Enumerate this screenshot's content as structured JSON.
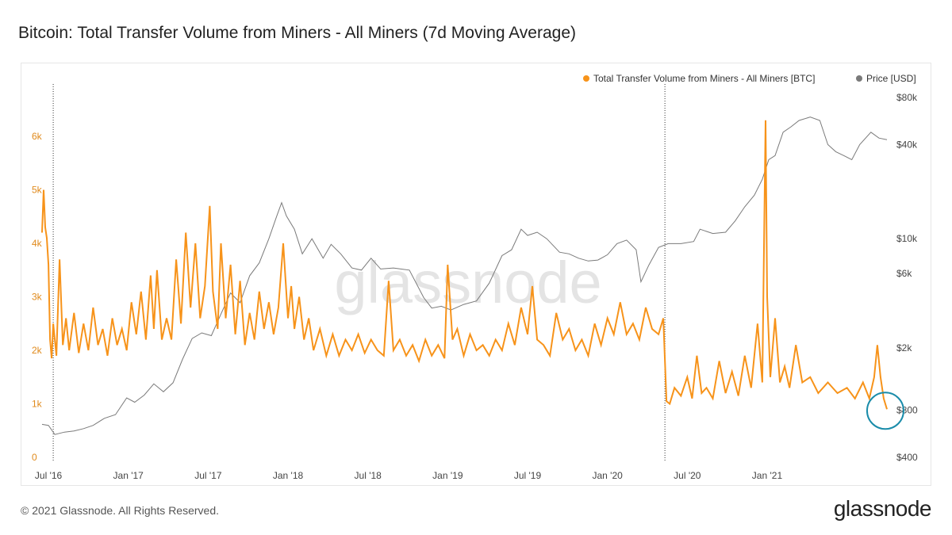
{
  "page": {
    "title": "Bitcoin: Total Transfer Volume from Miners - All Miners (7d Moving Average)",
    "footer": "© 2021 Glassnode. All Rights Reserved.",
    "brand": "glassnode",
    "watermark": "glassnode"
  },
  "colors": {
    "volume": "#f7931a",
    "price": "#7a7a7a",
    "highlight": "#1a8caa",
    "axis_left": "#e08a1c",
    "axis_right": "#444444"
  },
  "chart_data": {
    "type": "line",
    "title": "Bitcoin: Total Transfer Volume from Miners - All Miners (7d Moving Average)",
    "x_range": [
      2016.46,
      2021.78
    ],
    "x_ticks": [
      {
        "t": 2016.5,
        "label": "Jul '16"
      },
      {
        "t": 2017.0,
        "label": "Jan '17"
      },
      {
        "t": 2017.5,
        "label": "Jul '17"
      },
      {
        "t": 2018.0,
        "label": "Jan '18"
      },
      {
        "t": 2018.5,
        "label": "Jul '18"
      },
      {
        "t": 2019.0,
        "label": "Jan '19"
      },
      {
        "t": 2019.5,
        "label": "Jul '19"
      },
      {
        "t": 2020.0,
        "label": "Jan '20"
      },
      {
        "t": 2020.5,
        "label": "Jul '20"
      },
      {
        "t": 2021.0,
        "label": "Jan '21"
      }
    ],
    "y_left": {
      "label": "BTC",
      "min": 0,
      "max": 7000,
      "ticks": [
        {
          "v": 0,
          "label": "0"
        },
        {
          "v": 1000,
          "label": "1k"
        },
        {
          "v": 2000,
          "label": "2k"
        },
        {
          "v": 3000,
          "label": "3k"
        },
        {
          "v": 4000,
          "label": "4k"
        },
        {
          "v": 5000,
          "label": "5k"
        },
        {
          "v": 6000,
          "label": "6k"
        }
      ]
    },
    "y_right": {
      "label": "USD",
      "scale": "log",
      "min": 400,
      "max": 80000,
      "ticks": [
        {
          "v": 400,
          "label": "$400"
        },
        {
          "v": 800,
          "label": "$800"
        },
        {
          "v": 2000,
          "label": "$2k"
        },
        {
          "v": 6000,
          "label": "$6k"
        },
        {
          "v": 10000,
          "label": "$10k"
        },
        {
          "v": 40000,
          "label": "$40k"
        },
        {
          "v": 80000,
          "label": "$80k"
        }
      ]
    },
    "halvings": [
      2016.53,
      2020.36
    ],
    "highlight_point": {
      "t": 2021.75,
      "v": 900
    },
    "legend_position": "top-right",
    "series": [
      {
        "name": "Total Transfer Volume from Miners - All Miners [BTC]",
        "axis": "left",
        "points": [
          [
            2016.46,
            4200
          ],
          [
            2016.47,
            5000
          ],
          [
            2016.48,
            4300
          ],
          [
            2016.49,
            4100
          ],
          [
            2016.5,
            3600
          ],
          [
            2016.51,
            2200
          ],
          [
            2016.52,
            1850
          ],
          [
            2016.53,
            2500
          ],
          [
            2016.55,
            1900
          ],
          [
            2016.57,
            3700
          ],
          [
            2016.59,
            2100
          ],
          [
            2016.61,
            2600
          ],
          [
            2016.63,
            2000
          ],
          [
            2016.66,
            2700
          ],
          [
            2016.69,
            1950
          ],
          [
            2016.72,
            2500
          ],
          [
            2016.75,
            2000
          ],
          [
            2016.78,
            2800
          ],
          [
            2016.81,
            2100
          ],
          [
            2016.84,
            2400
          ],
          [
            2016.87,
            1900
          ],
          [
            2016.9,
            2600
          ],
          [
            2016.93,
            2100
          ],
          [
            2016.96,
            2400
          ],
          [
            2016.99,
            2000
          ],
          [
            2017.02,
            2900
          ],
          [
            2017.05,
            2300
          ],
          [
            2017.08,
            3100
          ],
          [
            2017.11,
            2200
          ],
          [
            2017.14,
            3400
          ],
          [
            2017.16,
            2400
          ],
          [
            2017.18,
            3500
          ],
          [
            2017.21,
            2200
          ],
          [
            2017.24,
            2600
          ],
          [
            2017.27,
            2200
          ],
          [
            2017.3,
            3700
          ],
          [
            2017.33,
            2500
          ],
          [
            2017.36,
            4200
          ],
          [
            2017.39,
            2800
          ],
          [
            2017.42,
            4000
          ],
          [
            2017.45,
            2600
          ],
          [
            2017.48,
            3200
          ],
          [
            2017.51,
            4700
          ],
          [
            2017.53,
            3100
          ],
          [
            2017.56,
            2400
          ],
          [
            2017.58,
            4000
          ],
          [
            2017.61,
            2600
          ],
          [
            2017.64,
            3600
          ],
          [
            2017.67,
            2300
          ],
          [
            2017.7,
            3300
          ],
          [
            2017.73,
            2100
          ],
          [
            2017.76,
            2700
          ],
          [
            2017.79,
            2200
          ],
          [
            2017.82,
            3100
          ],
          [
            2017.85,
            2400
          ],
          [
            2017.88,
            2900
          ],
          [
            2017.91,
            2300
          ],
          [
            2017.94,
            2800
          ],
          [
            2017.97,
            4000
          ],
          [
            2018.0,
            2600
          ],
          [
            2018.02,
            3200
          ],
          [
            2018.04,
            2400
          ],
          [
            2018.07,
            3000
          ],
          [
            2018.1,
            2200
          ],
          [
            2018.13,
            2600
          ],
          [
            2018.16,
            2000
          ],
          [
            2018.2,
            2400
          ],
          [
            2018.24,
            1900
          ],
          [
            2018.28,
            2300
          ],
          [
            2018.32,
            1900
          ],
          [
            2018.36,
            2200
          ],
          [
            2018.4,
            2000
          ],
          [
            2018.44,
            2300
          ],
          [
            2018.48,
            1950
          ],
          [
            2018.52,
            2200
          ],
          [
            2018.56,
            2000
          ],
          [
            2018.6,
            1900
          ],
          [
            2018.63,
            3300
          ],
          [
            2018.66,
            2000
          ],
          [
            2018.7,
            2200
          ],
          [
            2018.74,
            1900
          ],
          [
            2018.78,
            2100
          ],
          [
            2018.82,
            1800
          ],
          [
            2018.86,
            2200
          ],
          [
            2018.9,
            1900
          ],
          [
            2018.94,
            2100
          ],
          [
            2018.98,
            1850
          ],
          [
            2019.0,
            3600
          ],
          [
            2019.03,
            2200
          ],
          [
            2019.06,
            2400
          ],
          [
            2019.1,
            1900
          ],
          [
            2019.14,
            2300
          ],
          [
            2019.18,
            2000
          ],
          [
            2019.22,
            2100
          ],
          [
            2019.26,
            1900
          ],
          [
            2019.3,
            2200
          ],
          [
            2019.34,
            2000
          ],
          [
            2019.38,
            2500
          ],
          [
            2019.42,
            2100
          ],
          [
            2019.46,
            2800
          ],
          [
            2019.5,
            2300
          ],
          [
            2019.53,
            3200
          ],
          [
            2019.56,
            2200
          ],
          [
            2019.6,
            2100
          ],
          [
            2019.64,
            1900
          ],
          [
            2019.68,
            2700
          ],
          [
            2019.72,
            2200
          ],
          [
            2019.76,
            2400
          ],
          [
            2019.8,
            2000
          ],
          [
            2019.84,
            2200
          ],
          [
            2019.88,
            1900
          ],
          [
            2019.92,
            2500
          ],
          [
            2019.96,
            2100
          ],
          [
            2020.0,
            2600
          ],
          [
            2020.04,
            2300
          ],
          [
            2020.08,
            2900
          ],
          [
            2020.12,
            2300
          ],
          [
            2020.16,
            2500
          ],
          [
            2020.2,
            2200
          ],
          [
            2020.24,
            2800
          ],
          [
            2020.28,
            2400
          ],
          [
            2020.32,
            2300
          ],
          [
            2020.35,
            2600
          ],
          [
            2020.37,
            1050
          ],
          [
            2020.39,
            1000
          ],
          [
            2020.42,
            1300
          ],
          [
            2020.46,
            1150
          ],
          [
            2020.5,
            1500
          ],
          [
            2020.53,
            1100
          ],
          [
            2020.56,
            1900
          ],
          [
            2020.59,
            1200
          ],
          [
            2020.62,
            1300
          ],
          [
            2020.66,
            1100
          ],
          [
            2020.7,
            1800
          ],
          [
            2020.74,
            1200
          ],
          [
            2020.78,
            1600
          ],
          [
            2020.82,
            1150
          ],
          [
            2020.86,
            1900
          ],
          [
            2020.9,
            1300
          ],
          [
            2020.94,
            2500
          ],
          [
            2020.97,
            1400
          ],
          [
            2020.99,
            6300
          ],
          [
            2021.0,
            3000
          ],
          [
            2021.02,
            1500
          ],
          [
            2021.05,
            2600
          ],
          [
            2021.08,
            1400
          ],
          [
            2021.11,
            1700
          ],
          [
            2021.14,
            1300
          ],
          [
            2021.18,
            2100
          ],
          [
            2021.22,
            1400
          ],
          [
            2021.27,
            1500
          ],
          [
            2021.32,
            1200
          ],
          [
            2021.38,
            1400
          ],
          [
            2021.44,
            1200
          ],
          [
            2021.5,
            1300
          ],
          [
            2021.55,
            1100
          ],
          [
            2021.6,
            1400
          ],
          [
            2021.64,
            1100
          ],
          [
            2021.67,
            1500
          ],
          [
            2021.69,
            2100
          ],
          [
            2021.71,
            1500
          ],
          [
            2021.73,
            1100
          ],
          [
            2021.75,
            900
          ]
        ]
      },
      {
        "name": "Price [USD]",
        "axis": "right",
        "points": [
          [
            2016.46,
            650
          ],
          [
            2016.5,
            640
          ],
          [
            2016.54,
            560
          ],
          [
            2016.6,
            580
          ],
          [
            2016.66,
            590
          ],
          [
            2016.72,
            610
          ],
          [
            2016.78,
            640
          ],
          [
            2016.85,
            710
          ],
          [
            2016.92,
            750
          ],
          [
            2016.99,
            960
          ],
          [
            2017.04,
            900
          ],
          [
            2017.1,
            1000
          ],
          [
            2017.16,
            1180
          ],
          [
            2017.22,
            1050
          ],
          [
            2017.28,
            1200
          ],
          [
            2017.34,
            1700
          ],
          [
            2017.4,
            2300
          ],
          [
            2017.46,
            2500
          ],
          [
            2017.52,
            2400
          ],
          [
            2017.58,
            3300
          ],
          [
            2017.64,
            4500
          ],
          [
            2017.7,
            3900
          ],
          [
            2017.76,
            5800
          ],
          [
            2017.82,
            7000
          ],
          [
            2017.88,
            10000
          ],
          [
            2017.93,
            14000
          ],
          [
            2017.96,
            17000
          ],
          [
            2017.99,
            14000
          ],
          [
            2018.04,
            11500
          ],
          [
            2018.09,
            8000
          ],
          [
            2018.15,
            10000
          ],
          [
            2018.22,
            7500
          ],
          [
            2018.27,
            9200
          ],
          [
            2018.33,
            8000
          ],
          [
            2018.4,
            6500
          ],
          [
            2018.46,
            6300
          ],
          [
            2018.52,
            7500
          ],
          [
            2018.58,
            6400
          ],
          [
            2018.66,
            6500
          ],
          [
            2018.76,
            6300
          ],
          [
            2018.85,
            4200
          ],
          [
            2018.9,
            3600
          ],
          [
            2018.96,
            3700
          ],
          [
            2019.02,
            3500
          ],
          [
            2019.1,
            3800
          ],
          [
            2019.18,
            4000
          ],
          [
            2019.26,
            5200
          ],
          [
            2019.34,
            7800
          ],
          [
            2019.4,
            8500
          ],
          [
            2019.46,
            11500
          ],
          [
            2019.5,
            10500
          ],
          [
            2019.56,
            11000
          ],
          [
            2019.62,
            10000
          ],
          [
            2019.7,
            8200
          ],
          [
            2019.76,
            8000
          ],
          [
            2019.82,
            7500
          ],
          [
            2019.88,
            7200
          ],
          [
            2019.94,
            7300
          ],
          [
            2020.0,
            7900
          ],
          [
            2020.06,
            9300
          ],
          [
            2020.12,
            9800
          ],
          [
            2020.18,
            8500
          ],
          [
            2020.21,
            5300
          ],
          [
            2020.26,
            6800
          ],
          [
            2020.32,
            8800
          ],
          [
            2020.38,
            9300
          ],
          [
            2020.46,
            9300
          ],
          [
            2020.54,
            9600
          ],
          [
            2020.58,
            11500
          ],
          [
            2020.66,
            10800
          ],
          [
            2020.74,
            11000
          ],
          [
            2020.8,
            13000
          ],
          [
            2020.86,
            16000
          ],
          [
            2020.92,
            19000
          ],
          [
            2020.97,
            24000
          ],
          [
            2021.01,
            32000
          ],
          [
            2021.05,
            34000
          ],
          [
            2021.1,
            48000
          ],
          [
            2021.15,
            52000
          ],
          [
            2021.2,
            57000
          ],
          [
            2021.27,
            60000
          ],
          [
            2021.33,
            57000
          ],
          [
            2021.38,
            40000
          ],
          [
            2021.43,
            36000
          ],
          [
            2021.48,
            34000
          ],
          [
            2021.53,
            32000
          ],
          [
            2021.58,
            40000
          ],
          [
            2021.65,
            48000
          ],
          [
            2021.7,
            44000
          ],
          [
            2021.75,
            43000
          ]
        ]
      }
    ]
  }
}
